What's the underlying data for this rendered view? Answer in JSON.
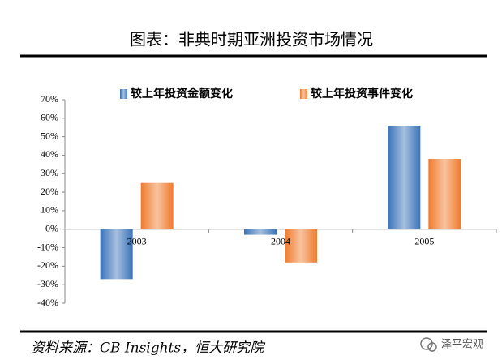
{
  "title": "图表：非典时期亚洲投资市场情况",
  "source": "资料来源：CB Insights，恒大研究院",
  "watermark": "泽平宏观",
  "chart_data": {
    "type": "bar",
    "categories": [
      "2003",
      "2004",
      "2005"
    ],
    "series": [
      {
        "name": "较上年投资金额变化",
        "color": "#3a73b8",
        "values": [
          -27,
          -3,
          56
        ]
      },
      {
        "name": "较上年投资事件变化",
        "color": "#f07a2c",
        "values": [
          25,
          -18,
          38
        ]
      }
    ],
    "ylim": [
      -40,
      70
    ],
    "yticks": [
      {
        "value": -40,
        "label": "-40%"
      },
      {
        "value": -30,
        "label": "-30%"
      },
      {
        "value": -20,
        "label": "-20%"
      },
      {
        "value": -10,
        "label": "-10%"
      },
      {
        "value": 0,
        "label": "0%"
      },
      {
        "value": 10,
        "label": "10%"
      },
      {
        "value": 20,
        "label": "20%"
      },
      {
        "value": 30,
        "label": "30%"
      },
      {
        "value": 40,
        "label": "40%"
      },
      {
        "value": 50,
        "label": "50%"
      },
      {
        "value": 60,
        "label": "60%"
      },
      {
        "value": 70,
        "label": "70%"
      }
    ],
    "legend": "top"
  }
}
